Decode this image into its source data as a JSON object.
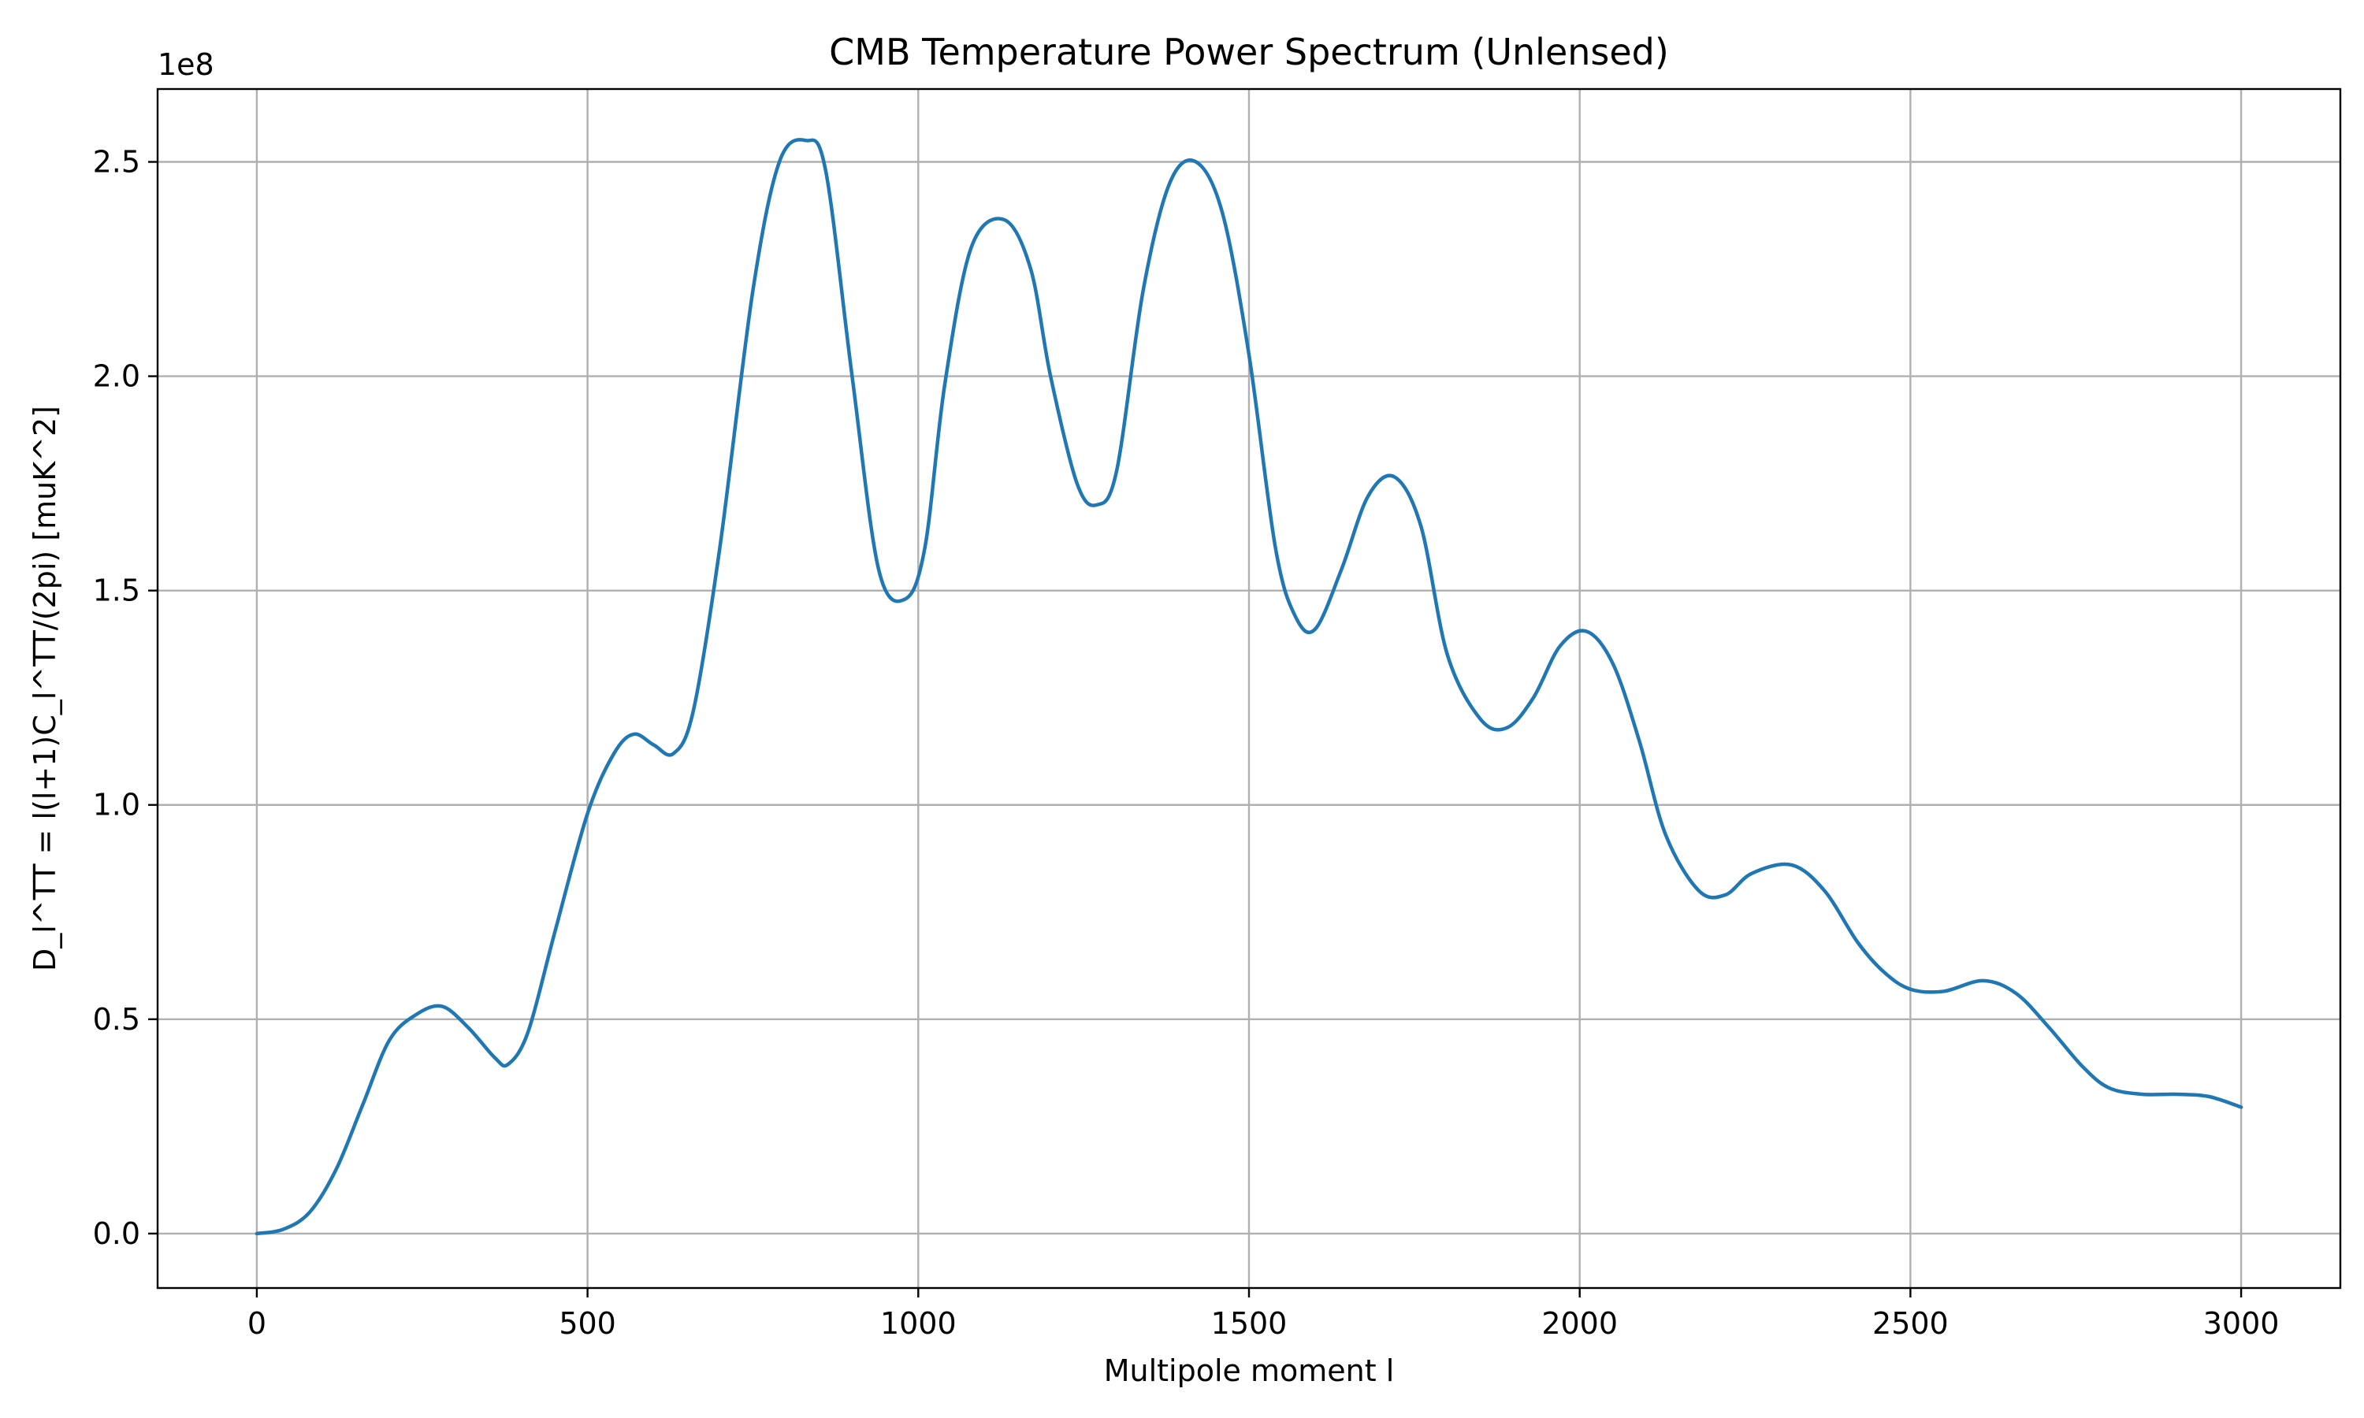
{
  "chart_data": {
    "type": "line",
    "title": "CMB Temperature Power Spectrum (Unlensed)",
    "xlabel": "Multipole moment l",
    "ylabel": "D_l^TT = l(l+1)C_l^TT/(2pi) [muK^2]",
    "y_offset_label": "1e8",
    "y_scale_factor": 100000000,
    "xlim": [
      -150,
      3150
    ],
    "ylim": [
      -12700000,
      267000000
    ],
    "x_ticks": [
      0,
      500,
      1000,
      1500,
      2000,
      2500,
      3000
    ],
    "x_tick_labels": [
      "0",
      "500",
      "1000",
      "1500",
      "2000",
      "2500",
      "3000"
    ],
    "y_ticks": [
      0,
      50000000,
      100000000,
      150000000,
      200000000,
      250000000
    ],
    "y_tick_labels": [
      "0.0",
      "0.5",
      "1.0",
      "1.5",
      "2.0",
      "2.5"
    ],
    "grid": true,
    "colors": {
      "series": "#1f77b4",
      "grid": "#b0b0b0",
      "axes": "#000000"
    },
    "series": [
      {
        "x": [
          0,
          40,
          80,
          120,
          160,
          200,
          240,
          280,
          320,
          360,
          380,
          410,
          450,
          500,
          540,
          570,
          600,
          630,
          660,
          700,
          750,
          790,
          830,
          860,
          900,
          940,
          980,
          1010,
          1040,
          1080,
          1130,
          1170,
          1200,
          1240,
          1270,
          1300,
          1340,
          1380,
          1420,
          1460,
          1500,
          1540,
          1570,
          1600,
          1640,
          1680,
          1720,
          1760,
          1800,
          1850,
          1890,
          1930,
          1970,
          2010,
          2050,
          2090,
          2130,
          2180,
          2220,
          2260,
          2320,
          2370,
          2420,
          2460,
          2500,
          2550,
          2610,
          2660,
          2710,
          2760,
          2800,
          2850,
          2900,
          2950,
          3000
        ],
        "y": [
          0,
          1000000,
          5000000,
          15000000,
          30000000,
          45000000,
          51000000,
          53000000,
          48000000,
          41000000,
          39500000,
          47000000,
          70000000,
          98000000,
          112000000,
          116500000,
          114000000,
          112000000,
          122000000,
          160000000,
          220000000,
          250000000,
          255000000,
          248000000,
          200000000,
          155000000,
          148000000,
          160000000,
          198000000,
          230000000,
          236500000,
          225000000,
          200000000,
          175000000,
          170000000,
          178000000,
          220000000,
          245000000,
          250000000,
          238000000,
          205000000,
          160000000,
          144000000,
          141000000,
          155000000,
          172000000,
          176500000,
          165000000,
          135000000,
          120000000,
          118000000,
          125000000,
          137000000,
          140500000,
          133000000,
          115000000,
          93000000,
          80000000,
          79000000,
          84000000,
          86000000,
          80000000,
          68000000,
          61000000,
          57000000,
          56500000,
          59000000,
          56000000,
          48000000,
          39000000,
          34000000,
          32500000,
          32500000,
          32000000,
          29500000
        ]
      }
    ]
  }
}
